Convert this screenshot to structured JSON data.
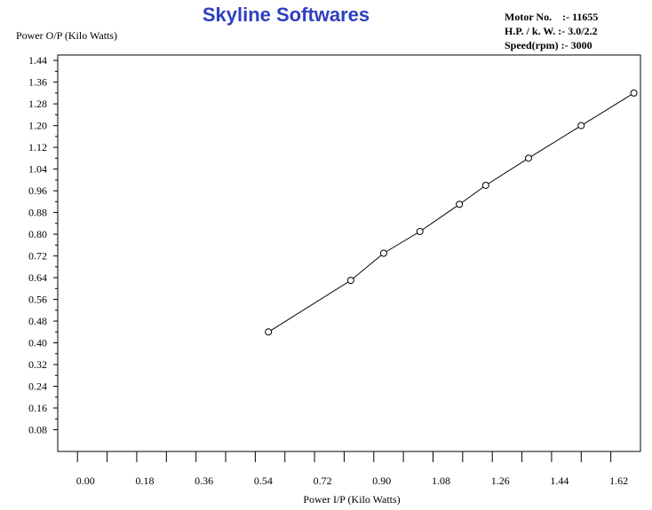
{
  "title": "Skyline Softwares",
  "info": {
    "motor_no": "Motor No.    :- 11655",
    "hp_kw": "H.P. / k. W. :- 3.0/2.2",
    "speed": "Speed(rpm) :- 3000"
  },
  "chart_data": {
    "type": "line",
    "title": "Skyline Softwares",
    "xlabel": "Power I/P (Kilo Watts)",
    "ylabel": "Power O/P (Kilo Watts)",
    "xlim": [
      -0.06,
      1.71
    ],
    "ylim": [
      0.0,
      1.46
    ],
    "x_ticks": [
      "0.00",
      "0.18",
      "0.36",
      "0.54",
      "0.72",
      "0.90",
      "1.08",
      "1.26",
      "1.44",
      "1.62"
    ],
    "y_ticks": [
      "0.08",
      "0.16",
      "0.24",
      "0.32",
      "0.40",
      "0.48",
      "0.56",
      "0.64",
      "0.72",
      "0.80",
      "0.88",
      "0.96",
      "1.04",
      "1.12",
      "1.20",
      "1.28",
      "1.36",
      "1.44"
    ],
    "grid": false,
    "series": [
      {
        "x": [
          0.58,
          0.83,
          0.93,
          1.04,
          1.16,
          1.24,
          1.37,
          1.53,
          1.69
        ],
        "y": [
          0.44,
          0.63,
          0.73,
          0.81,
          0.91,
          0.98,
          1.08,
          1.2,
          1.32
        ]
      }
    ]
  }
}
